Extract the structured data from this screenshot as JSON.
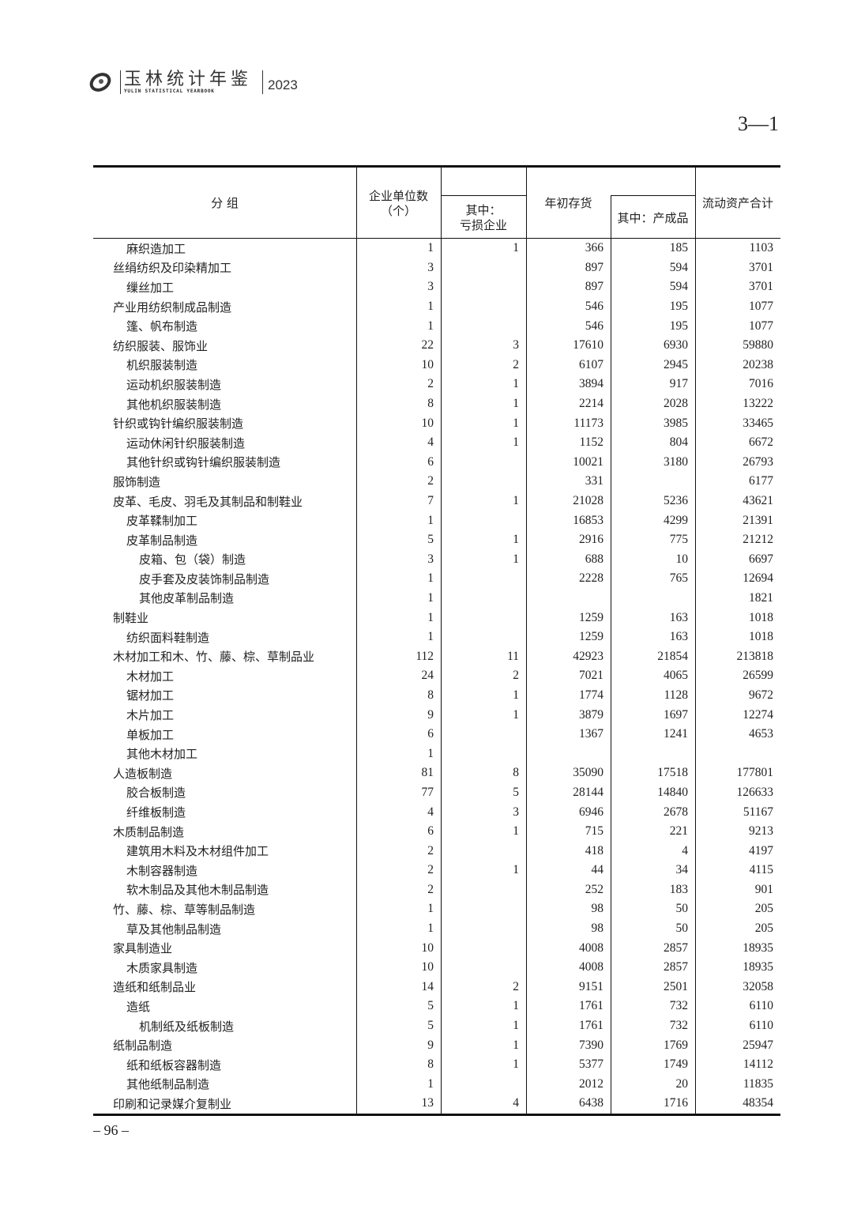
{
  "header": {
    "title_cn": "玉林统计年鉴",
    "title_en": "YULIN STATISTICAL YEARBOOK",
    "year": "2023",
    "table_number": "3—1"
  },
  "columns": {
    "group": "分 组",
    "units": "企业单位数（个）",
    "units_line1": "企业单位数",
    "units_line2": "（个）",
    "loss": "其中：亏损企业",
    "loss_line1": "其中：",
    "loss_line2": "亏损企业",
    "inventory": "年初存货",
    "finished": "其中：产成品",
    "current_assets": "流动资产合计"
  },
  "rows": [
    {
      "name": "麻织造加工",
      "level": 1,
      "v": [
        "1",
        "1",
        "366",
        "185",
        "1103"
      ]
    },
    {
      "name": "丝绢纺织及印染精加工",
      "level": 0,
      "v": [
        "3",
        "",
        "897",
        "594",
        "3701"
      ]
    },
    {
      "name": "缫丝加工",
      "level": 1,
      "v": [
        "3",
        "",
        "897",
        "594",
        "3701"
      ]
    },
    {
      "name": "产业用纺织制成品制造",
      "level": 0,
      "v": [
        "1",
        "",
        "546",
        "195",
        "1077"
      ]
    },
    {
      "name": "篷、帆布制造",
      "level": 1,
      "v": [
        "1",
        "",
        "546",
        "195",
        "1077"
      ]
    },
    {
      "name": "纺织服装、服饰业",
      "level": 0,
      "v": [
        "22",
        "3",
        "17610",
        "6930",
        "59880"
      ]
    },
    {
      "name": "机织服装制造",
      "level": 1,
      "v": [
        "10",
        "2",
        "6107",
        "2945",
        "20238"
      ]
    },
    {
      "name": "运动机织服装制造",
      "level": 1,
      "v": [
        "2",
        "1",
        "3894",
        "917",
        "7016"
      ]
    },
    {
      "name": "其他机织服装制造",
      "level": 1,
      "v": [
        "8",
        "1",
        "2214",
        "2028",
        "13222"
      ]
    },
    {
      "name": "针织或钩针编织服装制造",
      "level": 0,
      "v": [
        "10",
        "1",
        "11173",
        "3985",
        "33465"
      ]
    },
    {
      "name": "运动休闲针织服装制造",
      "level": 1,
      "v": [
        "4",
        "1",
        "1152",
        "804",
        "6672"
      ]
    },
    {
      "name": "其他针织或钩针编织服装制造",
      "level": 1,
      "v": [
        "6",
        "",
        "10021",
        "3180",
        "26793"
      ]
    },
    {
      "name": "服饰制造",
      "level": 0,
      "v": [
        "2",
        "",
        "331",
        "",
        "6177"
      ]
    },
    {
      "name": "皮革、毛皮、羽毛及其制品和制鞋业",
      "level": 0,
      "v": [
        "7",
        "1",
        "21028",
        "5236",
        "43621"
      ]
    },
    {
      "name": "皮革鞣制加工",
      "level": 1,
      "v": [
        "1",
        "",
        "16853",
        "4299",
        "21391"
      ]
    },
    {
      "name": "皮革制品制造",
      "level": 1,
      "v": [
        "5",
        "1",
        "2916",
        "775",
        "21212"
      ]
    },
    {
      "name": "皮箱、包（袋）制造",
      "level": 2,
      "v": [
        "3",
        "1",
        "688",
        "10",
        "6697"
      ]
    },
    {
      "name": "皮手套及皮装饰制品制造",
      "level": 2,
      "v": [
        "1",
        "",
        "2228",
        "765",
        "12694"
      ]
    },
    {
      "name": "其他皮革制品制造",
      "level": 2,
      "v": [
        "1",
        "",
        "",
        "",
        "1821"
      ]
    },
    {
      "name": "制鞋业",
      "level": 0,
      "v": [
        "1",
        "",
        "1259",
        "163",
        "1018"
      ]
    },
    {
      "name": "纺织面料鞋制造",
      "level": 1,
      "v": [
        "1",
        "",
        "1259",
        "163",
        "1018"
      ]
    },
    {
      "name": "木材加工和木、竹、藤、棕、草制品业",
      "level": 0,
      "v": [
        "112",
        "11",
        "42923",
        "21854",
        "213818"
      ]
    },
    {
      "name": "木材加工",
      "level": 1,
      "v": [
        "24",
        "2",
        "7021",
        "4065",
        "26599"
      ]
    },
    {
      "name": "锯材加工",
      "level": 1,
      "v": [
        "8",
        "1",
        "1774",
        "1128",
        "9672"
      ]
    },
    {
      "name": "木片加工",
      "level": 1,
      "v": [
        "9",
        "1",
        "3879",
        "1697",
        "12274"
      ]
    },
    {
      "name": "单板加工",
      "level": 1,
      "v": [
        "6",
        "",
        "1367",
        "1241",
        "4653"
      ]
    },
    {
      "name": "其他木材加工",
      "level": 1,
      "v": [
        "1",
        "",
        "",
        "",
        ""
      ]
    },
    {
      "name": "人造板制造",
      "level": 0,
      "v": [
        "81",
        "8",
        "35090",
        "17518",
        "177801"
      ]
    },
    {
      "name": "胶合板制造",
      "level": 1,
      "v": [
        "77",
        "5",
        "28144",
        "14840",
        "126633"
      ]
    },
    {
      "name": "纤维板制造",
      "level": 1,
      "v": [
        "4",
        "3",
        "6946",
        "2678",
        "51167"
      ]
    },
    {
      "name": "木质制品制造",
      "level": 0,
      "v": [
        "6",
        "1",
        "715",
        "221",
        "9213"
      ]
    },
    {
      "name": "建筑用木料及木材组件加工",
      "level": 1,
      "v": [
        "2",
        "",
        "418",
        "4",
        "4197"
      ]
    },
    {
      "name": "木制容器制造",
      "level": 1,
      "v": [
        "2",
        "1",
        "44",
        "34",
        "4115"
      ]
    },
    {
      "name": "软木制品及其他木制品制造",
      "level": 1,
      "v": [
        "2",
        "",
        "252",
        "183",
        "901"
      ]
    },
    {
      "name": "竹、藤、棕、草等制品制造",
      "level": 0,
      "v": [
        "1",
        "",
        "98",
        "50",
        "205"
      ]
    },
    {
      "name": "草及其他制品制造",
      "level": 1,
      "v": [
        "1",
        "",
        "98",
        "50",
        "205"
      ]
    },
    {
      "name": "家具制造业",
      "level": 0,
      "v": [
        "10",
        "",
        "4008",
        "2857",
        "18935"
      ]
    },
    {
      "name": "木质家具制造",
      "level": 1,
      "v": [
        "10",
        "",
        "4008",
        "2857",
        "18935"
      ]
    },
    {
      "name": "造纸和纸制品业",
      "level": 0,
      "v": [
        "14",
        "2",
        "9151",
        "2501",
        "32058"
      ]
    },
    {
      "name": "造纸",
      "level": 1,
      "v": [
        "5",
        "1",
        "1761",
        "732",
        "6110"
      ]
    },
    {
      "name": "机制纸及纸板制造",
      "level": 2,
      "v": [
        "5",
        "1",
        "1761",
        "732",
        "6110"
      ]
    },
    {
      "name": "纸制品制造",
      "level": 0,
      "v": [
        "9",
        "1",
        "7390",
        "1769",
        "25947"
      ]
    },
    {
      "name": "纸和纸板容器制造",
      "level": 1,
      "v": [
        "8",
        "1",
        "5377",
        "1749",
        "14112"
      ]
    },
    {
      "name": "其他纸制品制造",
      "level": 1,
      "v": [
        "1",
        "",
        "2012",
        "20",
        "11835"
      ]
    },
    {
      "name": "印刷和记录媒介复制业",
      "level": 0,
      "v": [
        "13",
        "4",
        "6438",
        "1716",
        "48354"
      ]
    }
  ],
  "footer": {
    "page_number": "– 96 –"
  }
}
